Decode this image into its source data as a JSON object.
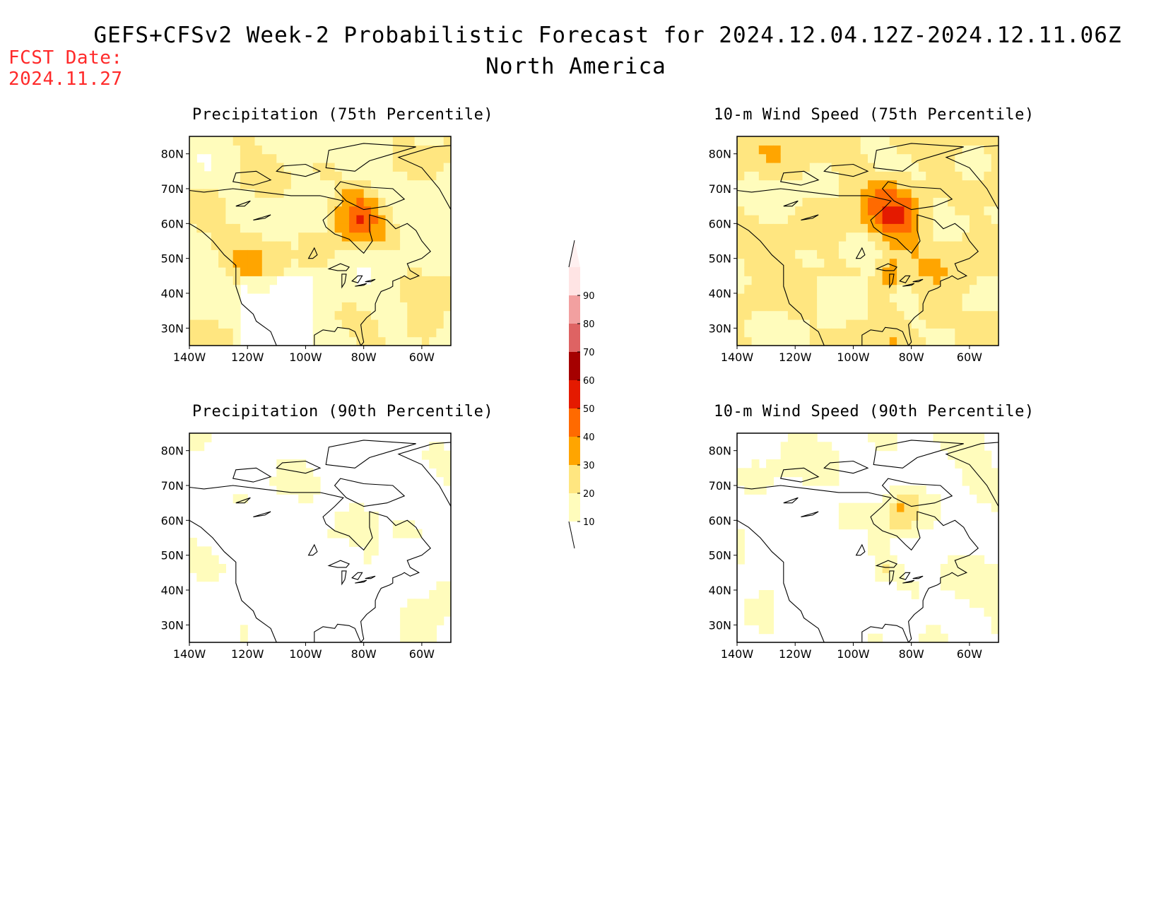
{
  "header": {
    "title_line1": "GEFS+CFSv2 Week-2 Probabilistic Forecast for 2024.12.04.12Z-2024.12.11.06Z",
    "title_line2": "North America",
    "fcst_label": "FCST Date:",
    "fcst_date": "2024.11.27"
  },
  "panels": [
    {
      "id": "precip75",
      "title": "Precipitation (75th Percentile)",
      "intensity": "medium-dry"
    },
    {
      "id": "wind75",
      "title": "10-m Wind Speed (75th Percentile)",
      "intensity": "high"
    },
    {
      "id": "precip90",
      "title": "Precipitation (90th Percentile)",
      "intensity": "low"
    },
    {
      "id": "wind90",
      "title": "10-m Wind Speed (90th Percentile)",
      "intensity": "low-wind"
    }
  ],
  "axes": {
    "lat_labels": [
      "80N",
      "70N",
      "60N",
      "50N",
      "40N",
      "30N"
    ],
    "lat_values": [
      80,
      70,
      60,
      50,
      40,
      30
    ],
    "lon_labels": [
      "140W",
      "120W",
      "100W",
      "80W",
      "60W"
    ],
    "lon_values": [
      -140,
      -120,
      -100,
      -80,
      -60
    ],
    "lat_range": [
      25,
      85
    ],
    "lon_range": [
      -140,
      -50
    ]
  },
  "colorbar": {
    "levels": [
      "10",
      "20",
      "30",
      "40",
      "50",
      "60",
      "70",
      "80",
      "90"
    ],
    "colors": [
      "#fffcbc",
      "#ffe680",
      "#ffa500",
      "#ff6a00",
      "#e41a00",
      "#a50000",
      "#de6363",
      "#f2a0a0",
      "#ffe4e4"
    ]
  }
}
